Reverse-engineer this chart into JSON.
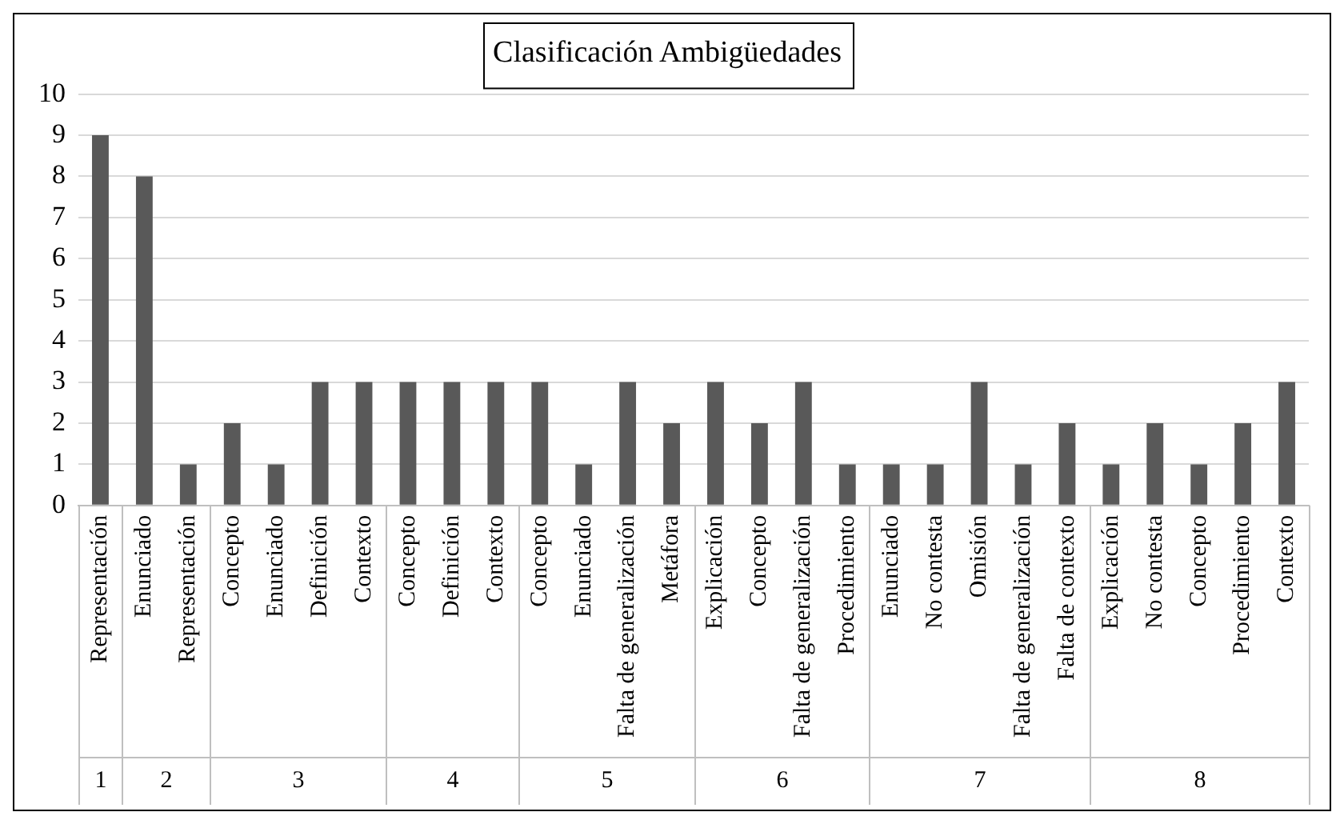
{
  "chart_data": {
    "type": "bar",
    "title": "Clasificación Ambigüedades",
    "categories": [
      "Representación",
      "Enunciado",
      "Representación",
      "Concepto",
      "Enunciado",
      "Definición",
      "Contexto",
      "Concepto",
      "Definición",
      "Contexto",
      "Concepto",
      "Enunciado",
      "Falta de generalización",
      "Metáfora",
      "Explicación",
      "Concepto",
      "Falta de generalización",
      "Procedimiento",
      "Enunciado",
      "No contesta",
      "Omisión",
      "Falta de generalización",
      "Falta de contexto",
      "Explicación",
      "No contesta",
      "Concepto",
      "Procedimiento",
      "Contexto"
    ],
    "values": [
      9,
      8,
      1,
      2,
      1,
      3,
      3,
      3,
      3,
      3,
      3,
      1,
      3,
      2,
      3,
      2,
      3,
      1,
      1,
      1,
      3,
      1,
      2,
      1,
      2,
      1,
      2,
      3
    ],
    "color": "#595959",
    "ylim": [
      0,
      10
    ],
    "yticks": [
      0,
      1,
      2,
      3,
      4,
      5,
      6,
      7,
      8,
      9,
      10
    ],
    "annotations": [
      "1",
      "2",
      "3",
      "4",
      "5",
      "6",
      "7",
      "8"
    ],
    "grid": "y",
    "legend": false
  }
}
